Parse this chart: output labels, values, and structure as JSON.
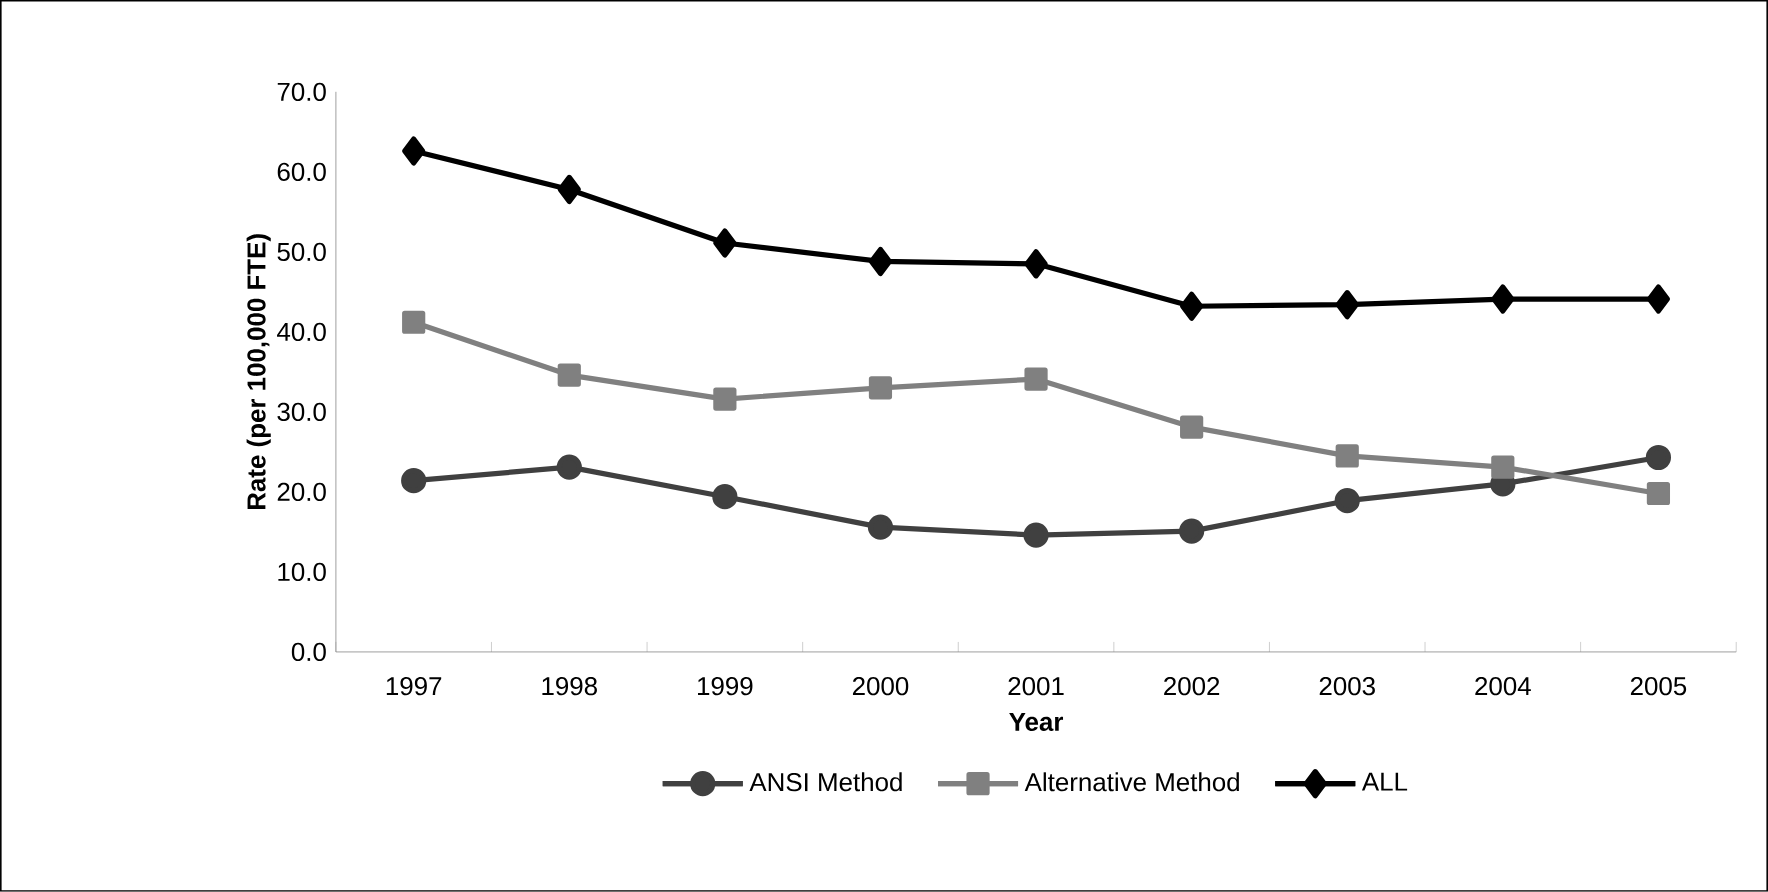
{
  "chart_data": {
    "type": "line",
    "xlabel": "Year",
    "ylabel": "Rate (per 100,000 FTE)",
    "categories": [
      "1997",
      "1998",
      "1999",
      "2000",
      "2001",
      "2002",
      "2003",
      "2004",
      "2005"
    ],
    "series": [
      {
        "name": "ANSI Method",
        "color": "#404040",
        "marker": "circle",
        "values": [
          21.4,
          23.1,
          19.4,
          15.6,
          14.6,
          15.1,
          18.9,
          21.0,
          24.3
        ]
      },
      {
        "name": "Alternative Method",
        "color": "#808080",
        "marker": "square",
        "values": [
          41.2,
          34.6,
          31.6,
          33.0,
          34.1,
          28.1,
          24.5,
          23.1,
          19.8
        ]
      },
      {
        "name": "ALL",
        "color": "#000000",
        "marker": "diamond",
        "values": [
          62.6,
          57.8,
          51.1,
          48.8,
          48.5,
          43.2,
          43.4,
          44.1,
          44.1
        ]
      }
    ],
    "ylim": [
      0,
      70
    ],
    "yticks": [
      {
        "value": 0,
        "label": "0.0"
      },
      {
        "value": 10,
        "label": "10.0"
      },
      {
        "value": 20,
        "label": "20.0"
      },
      {
        "value": 30,
        "label": "30.0"
      },
      {
        "value": 40,
        "label": "40.0"
      },
      {
        "value": 50,
        "label": "50.0"
      },
      {
        "value": 60,
        "label": "60.0"
      },
      {
        "value": 70,
        "label": "70.0"
      }
    ],
    "grid": false,
    "legend": "bottom",
    "line_style": "solid"
  }
}
